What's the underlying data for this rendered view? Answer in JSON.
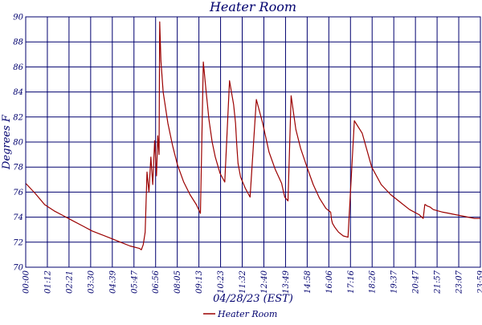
{
  "chart_data": {
    "type": "line",
    "title": "Heater Room",
    "xlabel": "04/28/23 (EST)",
    "ylabel": "Degrees F",
    "ylim": [
      70,
      90
    ],
    "y_ticks": [
      70,
      72,
      74,
      76,
      78,
      80,
      82,
      84,
      86,
      88,
      90
    ],
    "x_tick_labels": [
      "00:00",
      "01:12",
      "02:21",
      "03:30",
      "04:39",
      "05:47",
      "06:56",
      "08:05",
      "09:13",
      "10:23",
      "11:32",
      "12:40",
      "13:49",
      "14:58",
      "16:06",
      "17:16",
      "18:26",
      "19:37",
      "20:47",
      "21:57",
      "23:07",
      "23:59"
    ],
    "grid": true,
    "legend": "bottom-center",
    "series_color": "#9b0000",
    "grid_color": "#00006e",
    "series": [
      {
        "name": "Heater Room",
        "x_time": [
          "00:00",
          "00:30",
          "01:00",
          "01:30",
          "02:00",
          "02:30",
          "03:00",
          "03:30",
          "04:00",
          "04:30",
          "05:00",
          "05:30",
          "06:00",
          "06:06",
          "06:12",
          "06:18",
          "06:24",
          "06:30",
          "06:36",
          "06:42",
          "06:48",
          "06:54",
          "06:58",
          "07:02",
          "07:04",
          "07:08",
          "07:15",
          "07:30",
          "07:45",
          "08:00",
          "08:20",
          "08:40",
          "09:00",
          "09:13",
          "09:22",
          "09:30",
          "09:40",
          "09:50",
          "10:00",
          "10:15",
          "10:30",
          "10:45",
          "10:58",
          "11:04",
          "11:08",
          "11:12",
          "11:20",
          "11:35",
          "11:50",
          "12:10",
          "12:30",
          "12:50",
          "13:10",
          "13:30",
          "13:35",
          "13:40",
          "13:50",
          "14:00",
          "14:15",
          "14:30",
          "14:50",
          "15:10",
          "15:30",
          "15:50",
          "16:05",
          "16:08",
          "16:11",
          "16:18",
          "16:30",
          "16:45",
          "17:00",
          "17:20",
          "17:45",
          "18:15",
          "18:45",
          "19:15",
          "19:45",
          "20:15",
          "20:45",
          "20:58",
          "21:03",
          "21:05",
          "21:10",
          "21:20",
          "21:30",
          "21:45",
          "22:00",
          "22:20",
          "22:40",
          "23:00",
          "23:20",
          "23:40",
          "23:59"
        ],
        "y": [
          76.7,
          75.9,
          75.0,
          74.5,
          74.1,
          73.7,
          73.3,
          72.9,
          72.6,
          72.3,
          72.0,
          71.7,
          71.5,
          71.4,
          71.8,
          72.8,
          77.6,
          76.0,
          78.8,
          76.6,
          80.1,
          77.3,
          80.5,
          79.0,
          89.6,
          86.5,
          84.0,
          81.5,
          79.7,
          78.2,
          76.8,
          75.8,
          75.0,
          74.3,
          86.4,
          84.3,
          81.8,
          80.0,
          78.8,
          77.5,
          76.8,
          84.9,
          83.0,
          81.5,
          79.8,
          78.3,
          77.2,
          76.3,
          75.6,
          83.4,
          81.5,
          79.2,
          77.8,
          76.7,
          76.1,
          75.6,
          75.3,
          83.7,
          81.0,
          79.5,
          78.0,
          76.6,
          75.5,
          74.7,
          74.4,
          73.8,
          73.5,
          73.2,
          72.8,
          72.5,
          72.4,
          81.7,
          80.7,
          78.0,
          76.6,
          75.8,
          75.2,
          74.6,
          74.2,
          73.9,
          75.0,
          75.0,
          74.9,
          74.8,
          74.6,
          74.5,
          74.4,
          74.3,
          74.2,
          74.1,
          74.0,
          73.9,
          73.9
        ]
      }
    ]
  }
}
